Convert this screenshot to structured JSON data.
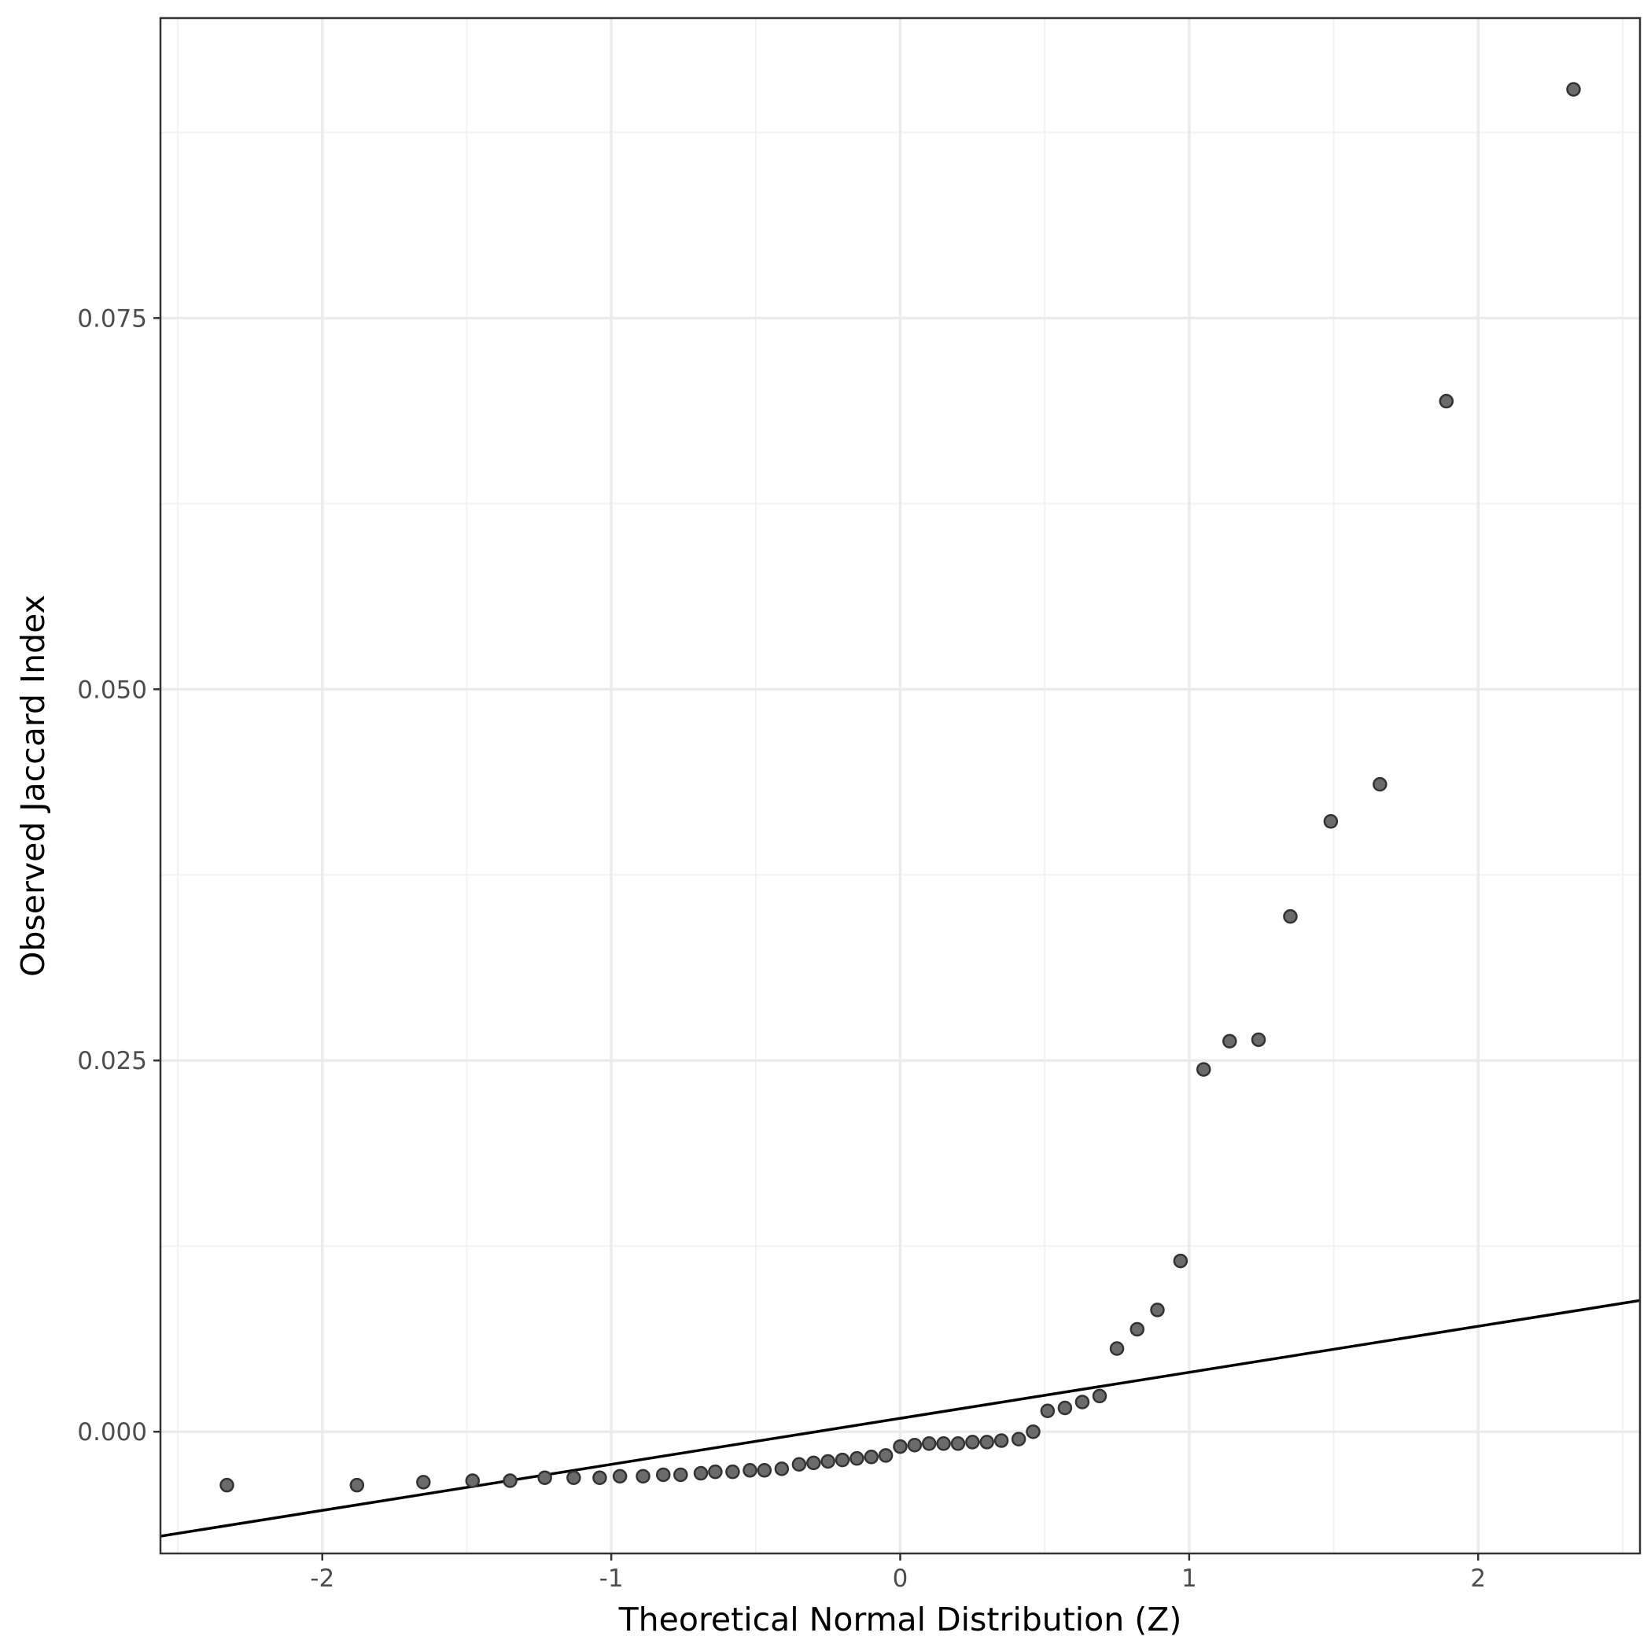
{
  "chart_data": {
    "type": "scatter",
    "title": "",
    "xlabel": "Theoretical Normal Distribution (Z)",
    "ylabel": "Observed Jaccard Index",
    "xlim": [
      -2.56,
      2.56
    ],
    "ylim": [
      -0.0082,
      0.0952
    ],
    "x_ticks": [
      -2,
      -1,
      0,
      1,
      2
    ],
    "x_tick_labels": [
      "-2",
      "-1",
      "0",
      "1",
      "2"
    ],
    "y_ticks": [
      0.0,
      0.025,
      0.05,
      0.075
    ],
    "y_tick_labels": [
      "0.000",
      "0.025",
      "0.050",
      "0.075"
    ],
    "grid": true,
    "legend": "none",
    "colors": {
      "point_fill": "#6b6b6b",
      "point_stroke": "#333333",
      "reference_line": "#000000",
      "panel_border": "#333333",
      "grid_major": "#ebebeb",
      "grid_minor": "#f2f2f2"
    },
    "series": [
      {
        "values": [
          {
            "x": -2.33,
            "y": -0.0036
          },
          {
            "x": -1.88,
            "y": -0.0036
          },
          {
            "x": -1.65,
            "y": -0.0034
          },
          {
            "x": -1.48,
            "y": -0.0033
          },
          {
            "x": -1.35,
            "y": -0.0033
          },
          {
            "x": -1.23,
            "y": -0.0031
          },
          {
            "x": -1.13,
            "y": -0.0031
          },
          {
            "x": -1.04,
            "y": -0.0031
          },
          {
            "x": -0.97,
            "y": -0.003
          },
          {
            "x": -0.89,
            "y": -0.003
          },
          {
            "x": -0.82,
            "y": -0.0029
          },
          {
            "x": -0.76,
            "y": -0.0029
          },
          {
            "x": -0.69,
            "y": -0.0028
          },
          {
            "x": -0.64,
            "y": -0.0027
          },
          {
            "x": -0.58,
            "y": -0.0027
          },
          {
            "x": -0.52,
            "y": -0.0026
          },
          {
            "x": -0.47,
            "y": -0.0026
          },
          {
            "x": -0.41,
            "y": -0.0025
          },
          {
            "x": -0.35,
            "y": -0.0022
          },
          {
            "x": -0.3,
            "y": -0.0021
          },
          {
            "x": -0.25,
            "y": -0.002
          },
          {
            "x": -0.2,
            "y": -0.0019
          },
          {
            "x": -0.15,
            "y": -0.0018
          },
          {
            "x": -0.1,
            "y": -0.0017
          },
          {
            "x": -0.05,
            "y": -0.0016
          },
          {
            "x": 0.0,
            "y": -0.001
          },
          {
            "x": 0.05,
            "y": -0.0009
          },
          {
            "x": 0.1,
            "y": -0.0008
          },
          {
            "x": 0.15,
            "y": -0.0008
          },
          {
            "x": 0.2,
            "y": -0.0008
          },
          {
            "x": 0.25,
            "y": -0.0007
          },
          {
            "x": 0.3,
            "y": -0.0007
          },
          {
            "x": 0.35,
            "y": -0.0006
          },
          {
            "x": 0.41,
            "y": -0.0005
          },
          {
            "x": 0.46,
            "y": 0.0
          },
          {
            "x": 0.51,
            "y": 0.0014
          },
          {
            "x": 0.57,
            "y": 0.0016
          },
          {
            "x": 0.63,
            "y": 0.002
          },
          {
            "x": 0.69,
            "y": 0.0024
          },
          {
            "x": 0.75,
            "y": 0.0056
          },
          {
            "x": 0.82,
            "y": 0.0069
          },
          {
            "x": 0.89,
            "y": 0.0082
          },
          {
            "x": 0.97,
            "y": 0.0115
          },
          {
            "x": 1.05,
            "y": 0.0244
          },
          {
            "x": 1.14,
            "y": 0.0263
          },
          {
            "x": 1.24,
            "y": 0.0264
          },
          {
            "x": 1.35,
            "y": 0.0347
          },
          {
            "x": 1.49,
            "y": 0.0411
          },
          {
            "x": 1.66,
            "y": 0.0436
          },
          {
            "x": 1.89,
            "y": 0.0694
          },
          {
            "x": 2.33,
            "y": 0.0904
          }
        ]
      }
    ],
    "reference_line": {
      "intercept": 0.0009,
      "slope": 0.0031
    }
  }
}
